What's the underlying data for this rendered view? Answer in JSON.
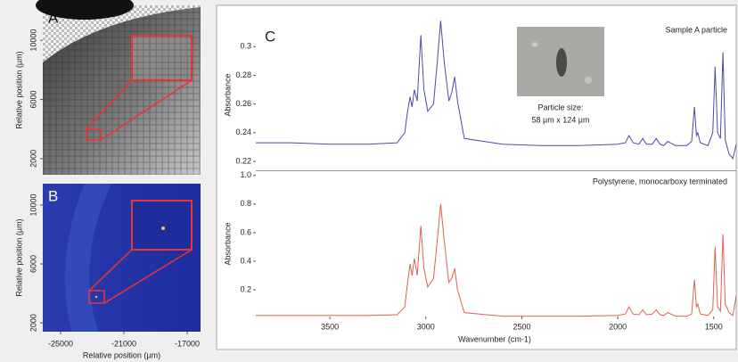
{
  "chart_data": [
    {
      "type": "image",
      "panel_label": "A",
      "ylabel": "Relative position (µm)",
      "ylim": [
        910,
        12360
      ],
      "yticks": [
        2000,
        6000,
        10000
      ]
    },
    {
      "type": "image",
      "panel_label": "B",
      "ylabel": "Relative position (µm)",
      "ylim": [
        1400,
        11450
      ],
      "yticks": [
        2000,
        6000,
        10000
      ],
      "xlabel": "Relative position (µm)",
      "xlim": [
        -26127,
        -16155
      ],
      "xticks": [
        -25000,
        -21000,
        -17000
      ]
    },
    {
      "type": "line",
      "panel_label": "C",
      "ylabel": "Absorbance",
      "annotation": [
        "Particle size:",
        "58 µm x 124 µm"
      ],
      "xlim": [
        3886,
        1383
      ],
      "ylim": [
        0.2138,
        0.3188
      ],
      "yticks": [
        0.22,
        0.24,
        0.26,
        0.28,
        0.3
      ],
      "x": [
        3886,
        3700,
        3500,
        3300,
        3150,
        3110,
        3095,
        3082,
        3072,
        3060,
        3045,
        3026,
        3010,
        2990,
        2960,
        2940,
        2923,
        2905,
        2880,
        2865,
        2850,
        2835,
        2800,
        2600,
        2400,
        2200,
        2000,
        1960,
        1942,
        1920,
        1890,
        1870,
        1850,
        1820,
        1800,
        1780,
        1760,
        1740,
        1700,
        1640,
        1615,
        1601,
        1590,
        1583,
        1570,
        1530,
        1505,
        1493,
        1480,
        1465,
        1452,
        1440,
        1420,
        1400,
        1383
      ],
      "series": [
        {
          "name": "Sample A particle",
          "color": "#4b4ba3",
          "values": [
            0.233,
            0.233,
            0.232,
            0.232,
            0.233,
            0.24,
            0.255,
            0.265,
            0.258,
            0.27,
            0.262,
            0.308,
            0.27,
            0.255,
            0.26,
            0.29,
            0.318,
            0.29,
            0.262,
            0.268,
            0.279,
            0.262,
            0.236,
            0.232,
            0.231,
            0.231,
            0.232,
            0.233,
            0.238,
            0.233,
            0.232,
            0.236,
            0.232,
            0.232,
            0.236,
            0.232,
            0.231,
            0.234,
            0.231,
            0.231,
            0.234,
            0.258,
            0.238,
            0.24,
            0.233,
            0.231,
            0.24,
            0.286,
            0.24,
            0.236,
            0.296,
            0.235,
            0.225,
            0.222,
            0.232
          ]
        }
      ]
    },
    {
      "type": "line",
      "ylabel": "Absorbance",
      "xlabel": "Wavenumber (cm-1)",
      "xlim": [
        3886,
        1383
      ],
      "xticks": [
        3500,
        3000,
        2500,
        2000,
        1500
      ],
      "ylim": [
        0.0125,
        1.03
      ],
      "yticks": [
        0.2,
        0.4,
        0.6,
        0.8,
        {
          "value": 1,
          "label": "1.0"
        }
      ],
      "x": [
        3886,
        3700,
        3500,
        3300,
        3150,
        3110,
        3095,
        3082,
        3072,
        3060,
        3045,
        3026,
        3010,
        2990,
        2960,
        2940,
        2923,
        2905,
        2880,
        2865,
        2850,
        2835,
        2800,
        2600,
        2400,
        2200,
        2000,
        1960,
        1942,
        1920,
        1890,
        1870,
        1850,
        1820,
        1800,
        1780,
        1760,
        1740,
        1700,
        1640,
        1615,
        1601,
        1590,
        1583,
        1570,
        1530,
        1505,
        1493,
        1480,
        1465,
        1452,
        1440,
        1420,
        1400,
        1383
      ],
      "series": [
        {
          "name": "Polystyrene, monocarboxy terminated",
          "color": "#e2604f",
          "values": [
            0.02,
            0.02,
            0.02,
            0.02,
            0.025,
            0.08,
            0.25,
            0.38,
            0.3,
            0.42,
            0.3,
            0.65,
            0.35,
            0.22,
            0.28,
            0.55,
            0.8,
            0.55,
            0.25,
            0.28,
            0.35,
            0.2,
            0.04,
            0.015,
            0.015,
            0.015,
            0.02,
            0.03,
            0.08,
            0.03,
            0.025,
            0.06,
            0.025,
            0.03,
            0.06,
            0.025,
            0.02,
            0.04,
            0.015,
            0.015,
            0.03,
            0.27,
            0.08,
            0.1,
            0.03,
            0.02,
            0.06,
            0.5,
            0.08,
            0.05,
            0.59,
            0.1,
            0.04,
            0.02,
            0.16
          ]
        }
      ]
    }
  ]
}
